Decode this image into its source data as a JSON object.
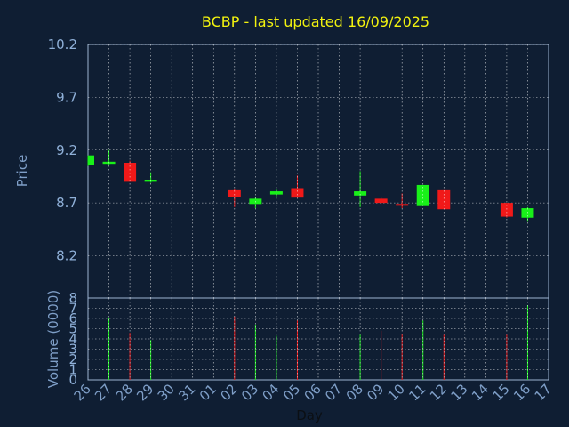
{
  "chart_data": {
    "type": "candlestick",
    "title": "BCBP - last updated 16/09/2025",
    "xlabel": "Day",
    "price_panel": {
      "ylabel": "Price",
      "ylim": [
        7.8,
        10.2
      ],
      "yticks": [
        "10.2",
        "9.7",
        "9.2",
        "8.7",
        "8.2"
      ]
    },
    "volume_panel": {
      "ylabel": "Volume (0000)",
      "ylim": [
        0,
        8
      ],
      "yticks": [
        "8",
        "7",
        "6",
        "5",
        "4",
        "3",
        "2",
        "1",
        "0"
      ]
    },
    "x_tick_labels": [
      "26",
      "27",
      "28",
      "29",
      "30",
      "31",
      "01",
      "02",
      "03",
      "04",
      "05",
      "06",
      "07",
      "08",
      "09",
      "10",
      "11",
      "12",
      "13",
      "14",
      "15",
      "16",
      "17"
    ],
    "candles": [
      {
        "day": "26",
        "open": 9.06,
        "high": 9.15,
        "low": 9.05,
        "close": 9.15
      },
      {
        "day": "27",
        "open": 9.07,
        "high": 9.2,
        "low": 9.06,
        "close": 9.09
      },
      {
        "day": "28",
        "open": 9.08,
        "high": 9.1,
        "low": 8.9,
        "close": 8.9
      },
      {
        "day": "29",
        "open": 8.9,
        "high": 8.99,
        "low": 8.89,
        "close": 8.92
      },
      {
        "day": "02",
        "open": 8.82,
        "high": 8.83,
        "low": 8.66,
        "close": 8.76
      },
      {
        "day": "03",
        "open": 8.69,
        "high": 8.75,
        "low": 8.65,
        "close": 8.74
      },
      {
        "day": "04",
        "open": 8.78,
        "high": 8.83,
        "low": 8.76,
        "close": 8.81
      },
      {
        "day": "05",
        "open": 8.84,
        "high": 8.96,
        "low": 8.75,
        "close": 8.75
      },
      {
        "day": "08",
        "open": 8.77,
        "high": 9.0,
        "low": 8.66,
        "close": 8.81
      },
      {
        "day": "09",
        "open": 8.74,
        "high": 8.75,
        "low": 8.69,
        "close": 8.7
      },
      {
        "day": "10",
        "open": 8.69,
        "high": 8.79,
        "low": 8.65,
        "close": 8.68
      },
      {
        "day": "11",
        "open": 8.67,
        "high": 8.87,
        "low": 8.67,
        "close": 8.87
      },
      {
        "day": "12",
        "open": 8.82,
        "high": 8.82,
        "low": 8.64,
        "close": 8.64
      },
      {
        "day": "15",
        "open": 8.7,
        "high": 8.7,
        "low": 8.56,
        "close": 8.57
      },
      {
        "day": "16",
        "open": 8.56,
        "high": 8.66,
        "low": 8.53,
        "close": 8.65
      }
    ],
    "volume": [
      {
        "day": "26",
        "value": 0,
        "dir": "up"
      },
      {
        "day": "27",
        "value": 6.0,
        "dir": "up"
      },
      {
        "day": "28",
        "value": 4.6,
        "dir": "down"
      },
      {
        "day": "29",
        "value": 3.9,
        "dir": "up"
      },
      {
        "day": "02",
        "value": 6.2,
        "dir": "down"
      },
      {
        "day": "03",
        "value": 5.4,
        "dir": "up"
      },
      {
        "day": "04",
        "value": 4.3,
        "dir": "up"
      },
      {
        "day": "05",
        "value": 5.8,
        "dir": "down"
      },
      {
        "day": "08",
        "value": 4.4,
        "dir": "up"
      },
      {
        "day": "09",
        "value": 4.8,
        "dir": "down"
      },
      {
        "day": "10",
        "value": 4.5,
        "dir": "down"
      },
      {
        "day": "11",
        "value": 5.8,
        "dir": "up"
      },
      {
        "day": "12",
        "value": 4.4,
        "dir": "down"
      },
      {
        "day": "15",
        "value": 4.4,
        "dir": "down"
      },
      {
        "day": "16",
        "value": 7.3,
        "dir": "up"
      }
    ],
    "grid": true,
    "colors": {
      "background": "#0f1e33",
      "up": "#19f019",
      "down": "#f01919",
      "grid": "#ffffff",
      "axis": "#9db4d2",
      "title": "#f2f20f",
      "tick_labels": "#8fb0d8"
    }
  }
}
